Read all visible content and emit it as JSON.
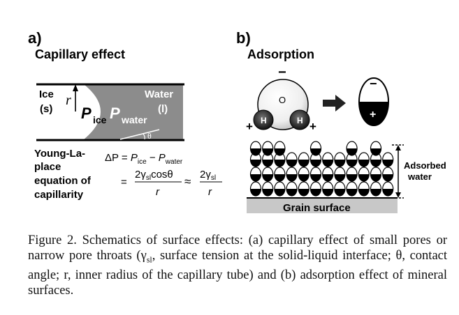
{
  "panel_a": {
    "letter": "a)",
    "title": "Capillary effect",
    "ice_label": "Ice",
    "ice_state": "(s)",
    "water_label": "Water",
    "water_state": "(l)",
    "radius_symbol": "r",
    "p_ice_main": "P",
    "p_ice_sub": "ice",
    "p_water_main": "P",
    "p_water_sub": "water",
    "theta_symbol": "θ",
    "equation_label_lines": [
      "Young-La-",
      "place",
      "equation of",
      "capillarity"
    ],
    "eq_delta_p": "ΔP = ",
    "eq_pice_sub": "ice",
    "eq_minus": " − ",
    "eq_pwater_sub": "water",
    "eq_equals": "=",
    "eq_numerator1_a": "2γ",
    "eq_numerator1_sub": "sl",
    "eq_numerator1_b": "cosθ",
    "eq_denominator": "r",
    "eq_approx": "≈",
    "eq_numerator2_a": "2γ",
    "eq_numerator2_sub": "sl"
  },
  "panel_b": {
    "letter": "b)",
    "title": "Adsorption",
    "oxygen_symbol": "O",
    "hydrogen_symbol": "H",
    "minus_sign": "−",
    "plus_sign": "+",
    "adsorbed_label_line1": "Adsorbed",
    "adsorbed_label_line2": "water",
    "grain_label": "Grain surface"
  },
  "caption": {
    "prefix": "Figure 2.",
    "text": "Schematics of surface effects: (a) capillary effect of small pores or narrow pore throats (γ",
    "gamma_sub": "sl",
    "text_after": ", surface tension at the solid-liquid interface; θ, contact angle; r, inner radius of the capillary tube) and (b) adsorption effect of mineral surfaces."
  },
  "colors": {
    "water_gray": "#8c8c8c",
    "grain_gray": "#c8c8c8",
    "ink": "#000000"
  }
}
